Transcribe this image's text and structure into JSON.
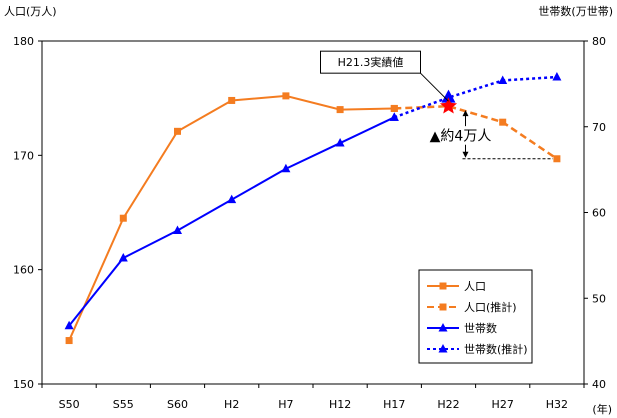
{
  "chart_data": {
    "type": "line",
    "categories": [
      "S50",
      "S55",
      "S60",
      "H2",
      "H7",
      "H12",
      "H17",
      "H22",
      "H27",
      "H32"
    ],
    "xlabel": "(年)",
    "ylabel_left": "人口(万人)",
    "ylabel_right": "世帯数(万世帯)",
    "ylim_left": [
      150,
      180
    ],
    "ylim_right": [
      40,
      80
    ],
    "yticks_left": [
      150,
      160,
      170,
      180
    ],
    "yticks_right": [
      40,
      50,
      60,
      70,
      80
    ],
    "legend_position": "bottom-right",
    "series": [
      {
        "name": "人口",
        "axis": "left",
        "color": "#f47c20",
        "style": "solid",
        "marker": "square",
        "points": [
          {
            "x": "S50",
            "y": 153.8
          },
          {
            "x": "S55",
            "y": 164.5
          },
          {
            "x": "S60",
            "y": 172.1
          },
          {
            "x": "H2",
            "y": 174.8
          },
          {
            "x": "H7",
            "y": 175.2
          },
          {
            "x": "H12",
            "y": 174.0
          },
          {
            "x": "H17",
            "y": 174.1
          }
        ]
      },
      {
        "name": "人口(推計)",
        "axis": "left",
        "color": "#f47c20",
        "style": "dashed",
        "marker": "square",
        "points": [
          {
            "x": "H17",
            "y": 174.1
          },
          {
            "x": "H22",
            "y": 174.3
          },
          {
            "x": "H27",
            "y": 172.9
          },
          {
            "x": "H32",
            "y": 169.7
          }
        ]
      },
      {
        "name": "世帯数",
        "axis": "right",
        "color": "#0000ff",
        "style": "solid",
        "marker": "triangle",
        "points": [
          {
            "x": "S50",
            "y": 46.8
          },
          {
            "x": "S55",
            "y": 54.7
          },
          {
            "x": "S60",
            "y": 57.9
          },
          {
            "x": "H2",
            "y": 61.5
          },
          {
            "x": "H7",
            "y": 65.1
          },
          {
            "x": "H12",
            "y": 68.1
          },
          {
            "x": "H17",
            "y": 71.1
          }
        ]
      },
      {
        "name": "世帯数(推計)",
        "axis": "right",
        "color": "#0000ff",
        "style": "dotted",
        "marker": "triangle",
        "points": [
          {
            "x": "H17",
            "y": 71.1
          },
          {
            "x": "H22",
            "y": 73.4
          },
          {
            "x": "H27",
            "y": 75.4
          },
          {
            "x": "H32",
            "y": 75.8
          }
        ]
      }
    ],
    "highlights": [
      {
        "name": "H21.3実績値",
        "kind": "star",
        "axis": "left",
        "x": "H22",
        "at": 0.0,
        "y": 174.3,
        "color": "#ff0000"
      },
      {
        "name": "H21.3実績値",
        "kind": "triangle",
        "axis": "right",
        "x": "H22",
        "at": 0.0,
        "y": 73.4,
        "color": "#0000ff"
      }
    ],
    "annotations": {
      "callout": "H21.3実績値",
      "difference": "▲約4万人",
      "difference_from": 174.3,
      "difference_to": 169.7
    }
  }
}
